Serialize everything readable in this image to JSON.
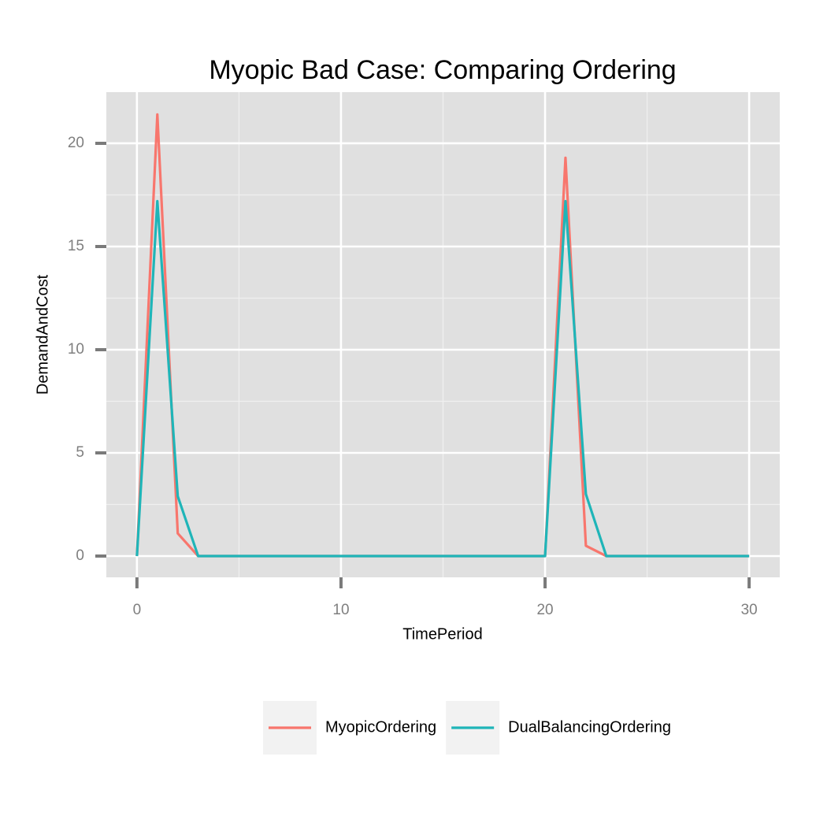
{
  "chart_data": {
    "type": "line",
    "title": "Myopic Bad Case: Comparing Ordering",
    "x_label": "TimePeriod",
    "y_label": "DemandAndCost",
    "x": [
      0,
      1,
      2,
      3,
      4,
      5,
      6,
      7,
      8,
      9,
      10,
      11,
      12,
      13,
      14,
      15,
      16,
      17,
      18,
      19,
      20,
      21,
      22,
      23,
      24,
      25,
      26,
      27,
      28,
      29,
      30
    ],
    "series": [
      {
        "name": "MyopicOrdering",
        "color": "#F8766D",
        "values": [
          0,
          21.4,
          1.1,
          0,
          0,
          0,
          0,
          0,
          0,
          0,
          0,
          0,
          0,
          0,
          0,
          0,
          0,
          0,
          0,
          0,
          0,
          19.3,
          0.5,
          0,
          0,
          0,
          0,
          0,
          0,
          0,
          0
        ]
      },
      {
        "name": "DualBalancingOrdering",
        "color": "#1fb5b8",
        "values": [
          0,
          17.2,
          2.9,
          0,
          0,
          0,
          0,
          0,
          0,
          0,
          0,
          0,
          0,
          0,
          0,
          0,
          0,
          0,
          0,
          0,
          0,
          17.2,
          3.0,
          0,
          0,
          0,
          0,
          0,
          0,
          0,
          0
        ]
      }
    ],
    "xlim": [
      -1.5,
      31.5
    ],
    "xticks": [
      0,
      10,
      20,
      30
    ],
    "ylim": [
      -1.03,
      22.48
    ],
    "yticks": [
      0,
      5,
      10,
      15,
      20
    ],
    "grid": true,
    "legend": "bottom"
  }
}
